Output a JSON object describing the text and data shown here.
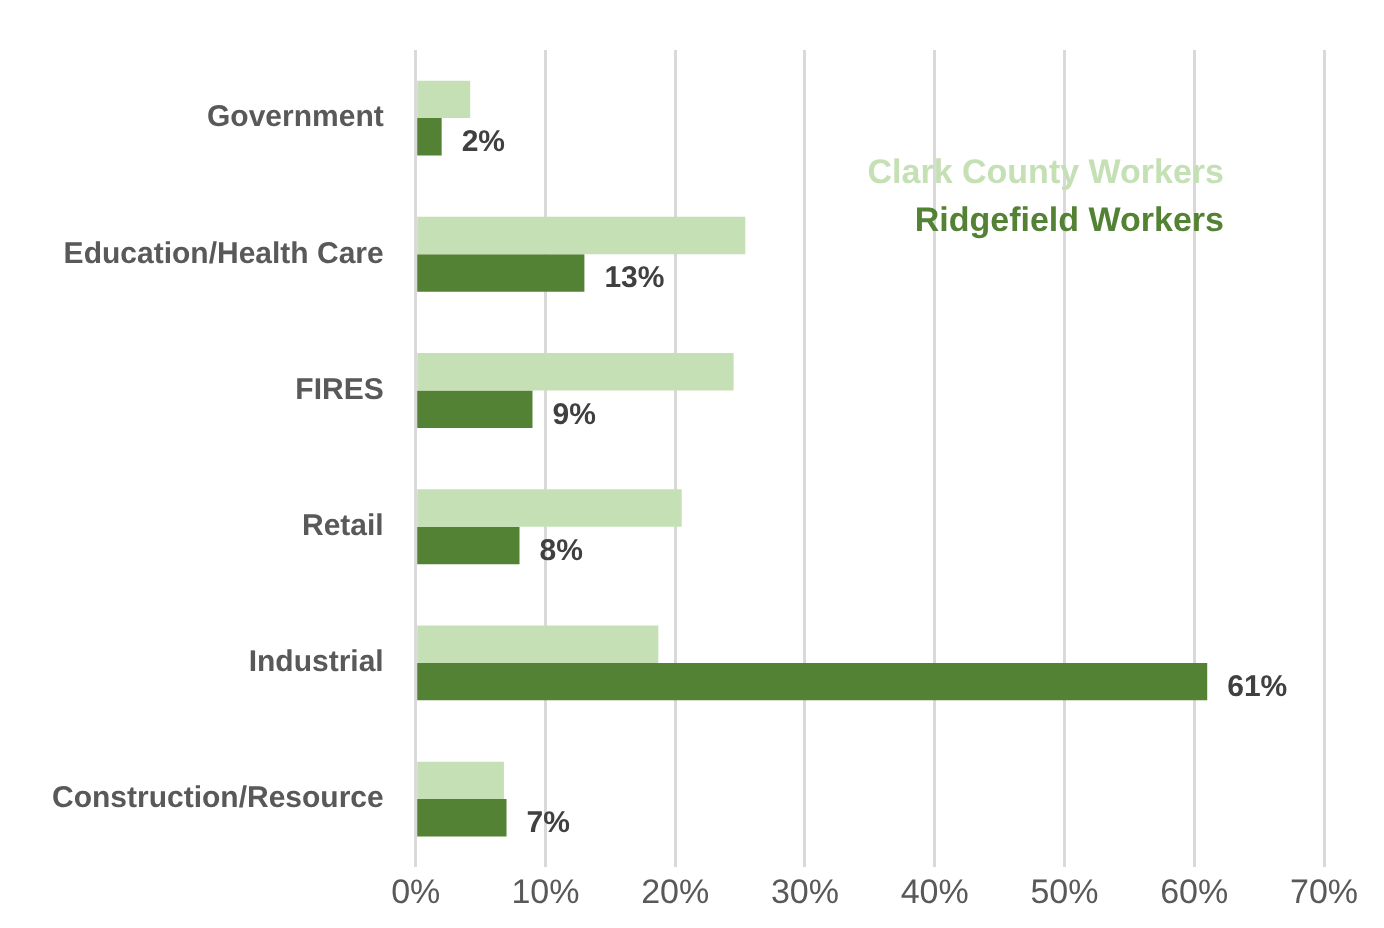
{
  "chart_data": {
    "type": "bar",
    "orientation": "horizontal",
    "categories": [
      "Government",
      "Education/Health Care",
      "FIRES",
      "Retail",
      "Industrial",
      "Construction/Resource"
    ],
    "series": [
      {
        "name": "Clark County Workers",
        "color": "#c5e0b4",
        "values": [
          4.2,
          25.4,
          24.5,
          20.5,
          18.7,
          6.8
        ]
      },
      {
        "name": "Ridgefield Workers",
        "color": "#548235",
        "values": [
          2,
          13,
          9,
          8,
          61,
          7
        ],
        "value_labels": [
          "2%",
          "13%",
          "9%",
          "8%",
          "61%",
          "7%"
        ]
      }
    ],
    "xlim": [
      0,
      70
    ],
    "xticks": [
      {
        "value": 0,
        "label": "0%"
      },
      {
        "value": 10,
        "label": "10%"
      },
      {
        "value": 20,
        "label": "20%"
      },
      {
        "value": 30,
        "label": "30%"
      },
      {
        "value": 40,
        "label": "40%"
      },
      {
        "value": 50,
        "label": "50%"
      },
      {
        "value": 60,
        "label": "60%"
      },
      {
        "value": 70,
        "label": "70%"
      }
    ],
    "grid": "x",
    "legend": "top right"
  }
}
